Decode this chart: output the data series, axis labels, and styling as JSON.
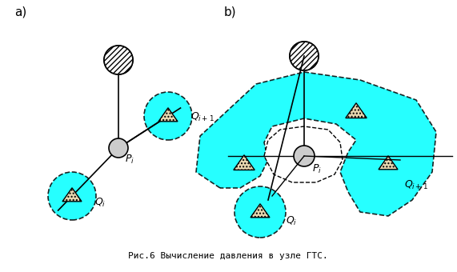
{
  "fig_width": 5.71,
  "fig_height": 3.4,
  "dpi": 100,
  "bg_color": "#ffffff",
  "cyan_fill": "#00FFFF",
  "cyan_alpha": 0.85,
  "caption": "Рис.6 Вычисление давления в узле ГТС.",
  "caption_fontsize": 8,
  "label_a": "a)",
  "label_b": "b)",
  "label_fontsize": 11
}
